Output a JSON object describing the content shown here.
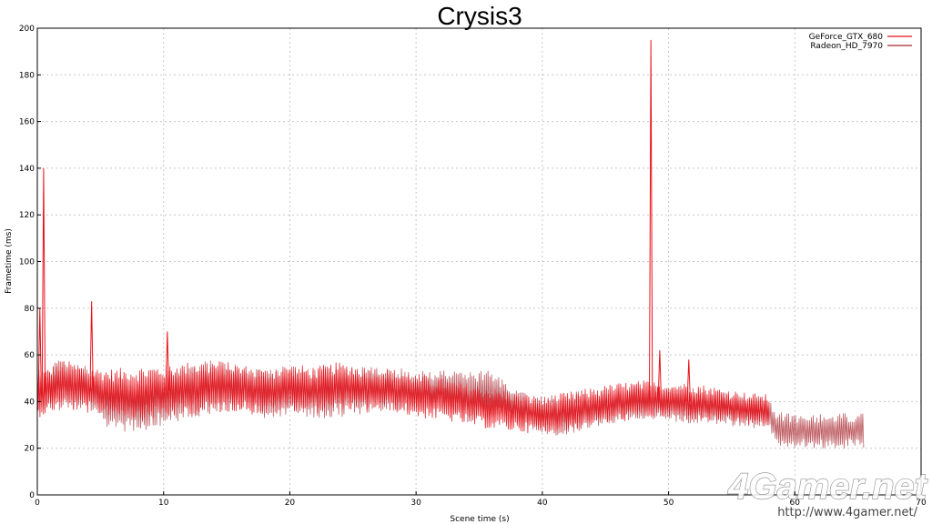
{
  "chart_data": {
    "type": "line",
    "title": "Crysis3",
    "xlabel": "Scene time (s)",
    "ylabel": "Frametime (ms)",
    "xlim": [
      0,
      70
    ],
    "ylim": [
      0,
      200
    ],
    "x_ticks": [
      0,
      10,
      20,
      30,
      40,
      50,
      60,
      70
    ],
    "y_ticks": [
      0,
      20,
      40,
      60,
      80,
      100,
      120,
      140,
      160,
      180,
      200
    ],
    "grid": true,
    "legend_position": "top-right",
    "series": [
      {
        "name": "GeForce_GTX_680",
        "color": "#e8111a",
        "band": [
          [
            0,
            33,
            52
          ],
          [
            2,
            37,
            58
          ],
          [
            4,
            35,
            55
          ],
          [
            6,
            34,
            54
          ],
          [
            8,
            32,
            55
          ],
          [
            10,
            33,
            56
          ],
          [
            12,
            34,
            57
          ],
          [
            14,
            35,
            58
          ],
          [
            16,
            36,
            56
          ],
          [
            18,
            34,
            54
          ],
          [
            20,
            36,
            56
          ],
          [
            22,
            35,
            55
          ],
          [
            24,
            36,
            57
          ],
          [
            26,
            36,
            55
          ],
          [
            28,
            36,
            54
          ],
          [
            30,
            33,
            52
          ],
          [
            32,
            32,
            50
          ],
          [
            34,
            30,
            48
          ],
          [
            36,
            28,
            46
          ],
          [
            38,
            27,
            44
          ],
          [
            40,
            26,
            42
          ],
          [
            42,
            27,
            44
          ],
          [
            44,
            30,
            46
          ],
          [
            46,
            31,
            48
          ],
          [
            48,
            33,
            49
          ],
          [
            50,
            33,
            48
          ],
          [
            52,
            32,
            48
          ],
          [
            54,
            31,
            46
          ],
          [
            56,
            30,
            44
          ],
          [
            58,
            29,
            43
          ]
        ],
        "spikes": [
          [
            0.5,
            140
          ],
          [
            0.2,
            80
          ],
          [
            4.3,
            83
          ],
          [
            10.3,
            70
          ],
          [
            48.6,
            195
          ],
          [
            49.3,
            62
          ],
          [
            51.6,
            58
          ]
        ]
      },
      {
        "name": "Radeon_HD_7970",
        "color": "#a8272f",
        "band": [
          [
            0,
            35,
            55
          ],
          [
            2,
            36,
            58
          ],
          [
            4,
            36,
            55
          ],
          [
            6,
            27,
            52
          ],
          [
            8,
            27,
            50
          ],
          [
            10,
            30,
            54
          ],
          [
            12,
            32,
            56
          ],
          [
            14,
            35,
            58
          ],
          [
            16,
            36,
            57
          ],
          [
            18,
            33,
            53
          ],
          [
            20,
            34,
            56
          ],
          [
            22,
            33,
            55
          ],
          [
            24,
            33,
            56
          ],
          [
            26,
            35,
            56
          ],
          [
            28,
            36,
            55
          ],
          [
            30,
            36,
            53
          ],
          [
            32,
            36,
            54
          ],
          [
            34,
            31,
            54
          ],
          [
            36,
            33,
            53
          ],
          [
            38,
            30,
            46
          ],
          [
            40,
            25,
            42
          ],
          [
            42,
            26,
            44
          ],
          [
            44,
            29,
            45
          ],
          [
            46,
            31,
            46
          ],
          [
            48,
            32,
            47
          ],
          [
            50,
            31,
            48
          ],
          [
            52,
            30,
            46
          ],
          [
            54,
            30,
            44
          ],
          [
            56,
            29,
            43
          ],
          [
            58,
            28,
            42
          ],
          [
            58.5,
            20,
            36
          ],
          [
            60,
            20,
            35
          ],
          [
            62,
            20,
            35
          ],
          [
            64,
            20,
            35
          ],
          [
            65.5,
            20,
            35
          ]
        ],
        "spikes": []
      }
    ]
  },
  "watermark": {
    "logo_text": "4Gamer.net",
    "url": "http://www.4gamer.net/"
  }
}
